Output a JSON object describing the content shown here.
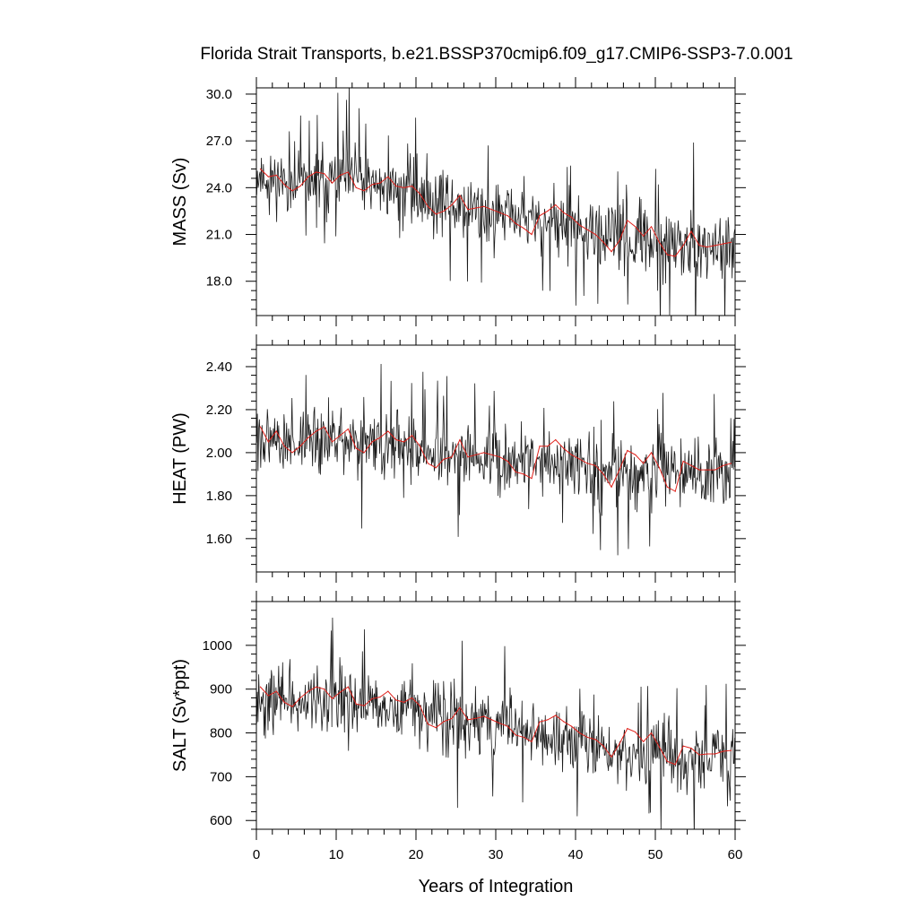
{
  "title": "Florida Strait Transports, b.e21.BSSP370cmip6.f09_g17.CMIP6-SSP3-7.0.001",
  "chart_data": [
    {
      "type": "line",
      "ylabel": "MASS (Sv)",
      "xlim": [
        0,
        60
      ],
      "ylim": [
        15.8,
        30.4
      ],
      "yticks": [
        18.0,
        21.0,
        24.0,
        27.0,
        30.0
      ],
      "ytick_labels": [
        "18.0",
        "21.0",
        "24.0",
        "27.0",
        "30.0"
      ],
      "xticks": [
        0,
        10,
        20,
        30,
        40,
        50,
        60
      ],
      "xtick_labels": [],
      "series": [
        {
          "role": "monthly",
          "color": "#1a1a1a",
          "n_points": 720,
          "seed": 11,
          "spike_scale": 4.2,
          "noise": 1.25,
          "trend": [
            [
              0,
              24.8
            ],
            [
              5,
              24.2
            ],
            [
              10,
              24.6
            ],
            [
              15,
              24.2
            ],
            [
              20,
              23.6
            ],
            [
              25,
              22.8
            ],
            [
              30,
              22.4
            ],
            [
              35,
              21.8
            ],
            [
              40,
              21.2
            ],
            [
              45,
              20.6
            ],
            [
              50,
              20.4
            ],
            [
              55,
              20.1
            ],
            [
              60,
              20.0
            ]
          ]
        },
        {
          "role": "annual-mean",
          "color": "#e0201a",
          "x": [
            0.5,
            1.5,
            2.5,
            3.5,
            4.5,
            5.5,
            6.5,
            7.5,
            8.5,
            9.5,
            10.5,
            11.5,
            12.5,
            13.5,
            14.5,
            15.5,
            16.5,
            17.5,
            18.5,
            19.5,
            20.5,
            21.5,
            22.5,
            23.5,
            24.5,
            25.5,
            26.5,
            27.5,
            28.5,
            29.5,
            30.5,
            31.5,
            32.5,
            33.5,
            34.5,
            35.5,
            36.5,
            37.5,
            38.5,
            39.5,
            40.5,
            41.5,
            42.5,
            43.5,
            44.5,
            45.5,
            46.5,
            47.5,
            48.5,
            49.5,
            50.5,
            51.5,
            52.5,
            53.5,
            54.5,
            55.5,
            56.5,
            57.5,
            58.5,
            59.5
          ],
          "values": [
            25.2,
            24.7,
            24.8,
            24.2,
            23.8,
            24.1,
            24.7,
            25.0,
            24.9,
            24.3,
            24.8,
            25.0,
            24.0,
            23.8,
            24.2,
            24.3,
            24.7,
            24.1,
            24.0,
            24.1,
            23.6,
            22.8,
            22.3,
            22.5,
            22.9,
            23.5,
            22.6,
            22.7,
            22.8,
            22.6,
            22.4,
            22.2,
            21.7,
            21.4,
            21.0,
            22.2,
            22.5,
            22.9,
            22.4,
            22.1,
            21.6,
            21.3,
            21.0,
            20.5,
            19.9,
            20.6,
            21.9,
            21.5,
            20.9,
            21.5,
            20.5,
            19.7,
            19.6,
            20.3,
            21.2,
            20.3,
            20.2,
            20.3,
            20.4,
            20.5
          ]
        }
      ]
    },
    {
      "type": "line",
      "ylabel": "HEAT (PW)",
      "xlim": [
        0,
        60
      ],
      "ylim": [
        1.445,
        2.5
      ],
      "yticks": [
        1.6,
        1.8,
        2.0,
        2.2,
        2.4
      ],
      "ytick_labels": [
        "1.60",
        "1.80",
        "2.00",
        "2.20",
        "2.40"
      ],
      "xticks": [
        0,
        10,
        20,
        30,
        40,
        50,
        60
      ],
      "xtick_labels": [],
      "series": [
        {
          "role": "monthly",
          "color": "#1a1a1a",
          "n_points": 720,
          "seed": 27,
          "spike_scale": 0.32,
          "noise": 0.095,
          "trend": [
            [
              0,
              2.08
            ],
            [
              5,
              2.04
            ],
            [
              10,
              2.07
            ],
            [
              15,
              2.05
            ],
            [
              20,
              2.02
            ],
            [
              25,
              1.98
            ],
            [
              30,
              1.97
            ],
            [
              35,
              1.95
            ],
            [
              40,
              1.94
            ],
            [
              45,
              1.9
            ],
            [
              50,
              1.91
            ],
            [
              55,
              1.89
            ],
            [
              60,
              1.92
            ]
          ]
        },
        {
          "role": "annual-mean",
          "color": "#e0201a",
          "x": [
            0.5,
            1.5,
            2.5,
            3.5,
            4.5,
            5.5,
            6.5,
            7.5,
            8.5,
            9.5,
            10.5,
            11.5,
            12.5,
            13.5,
            14.5,
            15.5,
            16.5,
            17.5,
            18.5,
            19.5,
            20.5,
            21.5,
            22.5,
            23.5,
            24.5,
            25.5,
            26.5,
            27.5,
            28.5,
            29.5,
            30.5,
            31.5,
            32.5,
            33.5,
            34.5,
            35.5,
            36.5,
            37.5,
            38.5,
            39.5,
            40.5,
            41.5,
            42.5,
            43.5,
            44.5,
            45.5,
            46.5,
            47.5,
            48.5,
            49.5,
            50.5,
            51.5,
            52.5,
            53.5,
            54.5,
            55.5,
            56.5,
            57.5,
            58.5,
            59.5
          ],
          "values": [
            2.12,
            2.05,
            2.1,
            2.03,
            2.0,
            2.03,
            2.07,
            2.1,
            2.12,
            2.05,
            2.08,
            2.11,
            2.02,
            2.0,
            2.05,
            2.07,
            2.1,
            2.06,
            2.05,
            2.08,
            2.03,
            1.95,
            1.93,
            1.97,
            1.98,
            2.06,
            1.98,
            1.99,
            2.0,
            1.99,
            1.98,
            1.96,
            1.91,
            1.9,
            1.88,
            2.03,
            2.03,
            2.06,
            2.02,
            1.99,
            1.97,
            1.95,
            1.94,
            1.9,
            1.84,
            1.92,
            2.01,
            1.99,
            1.95,
            2.0,
            1.93,
            1.84,
            1.82,
            1.96,
            1.94,
            1.92,
            1.92,
            1.92,
            1.94,
            1.95
          ]
        }
      ]
    },
    {
      "type": "line",
      "ylabel": "SALT (Sv*ppt)",
      "xlim": [
        0,
        60
      ],
      "ylim": [
        580,
        1100
      ],
      "yticks": [
        600,
        700,
        800,
        900,
        1000
      ],
      "ytick_labels": [
        "600",
        "700",
        "800",
        "900",
        "1000"
      ],
      "xticks": [
        0,
        10,
        20,
        30,
        40,
        50,
        60
      ],
      "xtick_labels": [
        "0",
        "10",
        "20",
        "30",
        "40",
        "50",
        "60"
      ],
      "xlabel": "Years of Integration",
      "series": [
        {
          "role": "monthly",
          "color": "#1a1a1a",
          "n_points": 720,
          "seed": 43,
          "spike_scale": 150,
          "noise": 45,
          "trend": [
            [
              0,
              880
            ],
            [
              5,
              866
            ],
            [
              10,
              880
            ],
            [
              15,
              868
            ],
            [
              20,
              856
            ],
            [
              25,
              830
            ],
            [
              30,
              818
            ],
            [
              35,
              798
            ],
            [
              40,
              780
            ],
            [
              45,
              758
            ],
            [
              50,
              752
            ],
            [
              55,
              742
            ],
            [
              60,
              744
            ]
          ]
        },
        {
          "role": "annual-mean",
          "color": "#e0201a",
          "x": [
            0.5,
            1.5,
            2.5,
            3.5,
            4.5,
            5.5,
            6.5,
            7.5,
            8.5,
            9.5,
            10.5,
            11.5,
            12.5,
            13.5,
            14.5,
            15.5,
            16.5,
            17.5,
            18.5,
            19.5,
            20.5,
            21.5,
            22.5,
            23.5,
            24.5,
            25.5,
            26.5,
            27.5,
            28.5,
            29.5,
            30.5,
            31.5,
            32.5,
            33.5,
            34.5,
            35.5,
            36.5,
            37.5,
            38.5,
            39.5,
            40.5,
            41.5,
            42.5,
            43.5,
            44.5,
            45.5,
            46.5,
            47.5,
            48.5,
            49.5,
            50.5,
            51.5,
            52.5,
            53.5,
            54.5,
            55.5,
            56.5,
            57.5,
            58.5,
            59.5
          ],
          "values": [
            905,
            885,
            895,
            870,
            860,
            880,
            895,
            905,
            900,
            878,
            893,
            905,
            866,
            862,
            878,
            882,
            895,
            875,
            870,
            880,
            862,
            820,
            812,
            826,
            833,
            858,
            830,
            833,
            838,
            830,
            822,
            815,
            795,
            790,
            780,
            825,
            830,
            840,
            826,
            815,
            800,
            790,
            785,
            770,
            745,
            775,
            810,
            802,
            780,
            800,
            768,
            735,
            728,
            770,
            765,
            750,
            752,
            752,
            758,
            760
          ]
        }
      ]
    }
  ]
}
